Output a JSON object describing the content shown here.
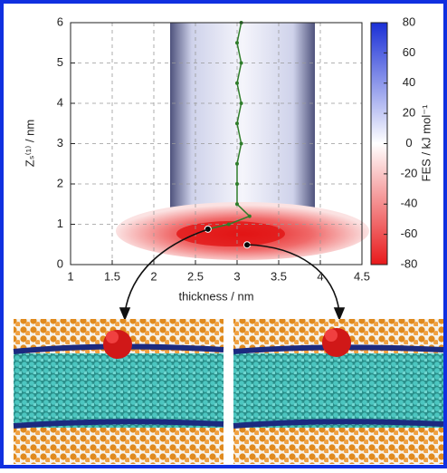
{
  "chart_data": {
    "type": "line",
    "xlabel": "thickness / nm",
    "ylabel": "Zₛ⁽¹⁾ / nm",
    "xlim": [
      1,
      4.5
    ],
    "ylim": [
      0,
      6
    ],
    "xticks": [
      1,
      1.5,
      2,
      2.5,
      3,
      3.5,
      4,
      4.5
    ],
    "yticks": [
      0,
      1,
      2,
      3,
      4,
      5,
      6
    ],
    "grid": true,
    "series": [
      {
        "color": "#2f7d2a",
        "x": [
          3.05,
          3.0,
          3.05,
          3.0,
          3.05,
          3.0,
          3.05,
          3.0,
          3.0,
          3.0,
          3.15,
          2.9,
          2.65
        ],
        "values": [
          6,
          5.5,
          5,
          4.5,
          4,
          3.5,
          3,
          2.5,
          2,
          1.5,
          1.2,
          1.0,
          0.88
        ]
      }
    ],
    "points": {
      "color": "#000000",
      "x": [
        2.65,
        3.12
      ],
      "values": [
        0.88,
        0.49
      ]
    },
    "colorbar": {
      "label": "FES / kJ mol⁻¹",
      "lim": [
        -80,
        80
      ],
      "ticks": [
        80,
        60,
        40,
        20,
        0,
        -20,
        -40,
        -60,
        -80
      ],
      "colors": [
        "#e8191b",
        "#ffffff",
        "#1a2fd6"
      ]
    }
  }
}
